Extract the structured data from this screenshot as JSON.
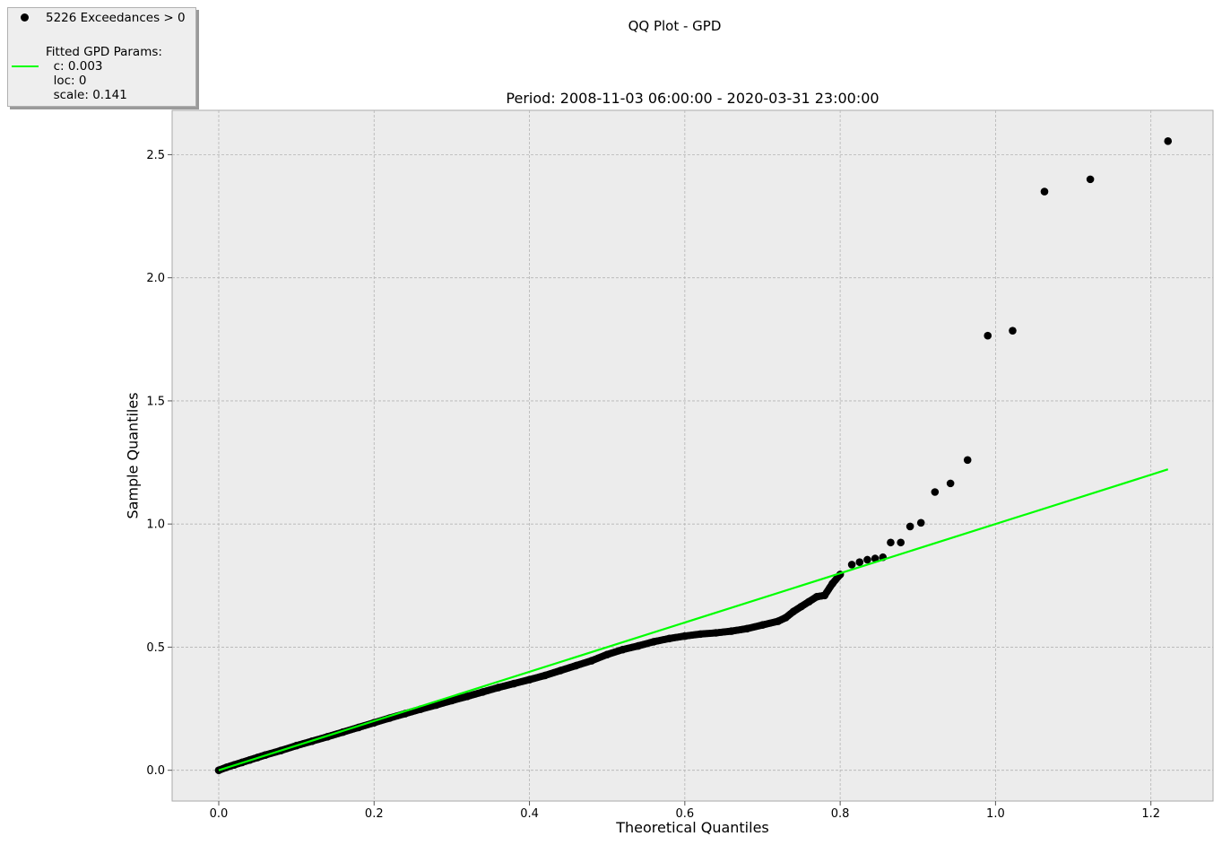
{
  "chart_data": {
    "type": "scatter",
    "title": "QQ Plot - GPD",
    "subtitle": "Period: 2008-11-03 06:00:00 - 2020-03-31 23:00:00",
    "xlabel": "Theoretical Quantiles",
    "ylabel": "Sample Quantiles",
    "xlim": [
      -0.06,
      1.28
    ],
    "ylim": [
      -0.125,
      2.68
    ],
    "xticks": [
      0.0,
      0.2,
      0.4,
      0.6,
      0.8,
      1.0,
      1.2
    ],
    "xtick_labels": [
      "0.0",
      "0.2",
      "0.4",
      "0.6",
      "0.8",
      "1.0",
      "1.2"
    ],
    "yticks": [
      0.0,
      0.5,
      1.0,
      1.5,
      2.0,
      2.5
    ],
    "ytick_labels": [
      "0.0",
      "0.5",
      "1.0",
      "1.5",
      "2.0",
      "2.5"
    ],
    "grid": true,
    "legend_position": "top-left",
    "colors": {
      "points": "#000000",
      "fit_line": "#00ff00",
      "plot_bg": "#ececec",
      "grid": "#b4b4b4"
    },
    "series": [
      {
        "name": "5226 Exceedances > 0",
        "kind": "scatter",
        "x": [
          0.0,
          0.01,
          0.02,
          0.03,
          0.04,
          0.05,
          0.06,
          0.08,
          0.1,
          0.12,
          0.14,
          0.16,
          0.18,
          0.2,
          0.22,
          0.24,
          0.26,
          0.28,
          0.3,
          0.32,
          0.34,
          0.36,
          0.38,
          0.4,
          0.42,
          0.44,
          0.46,
          0.48,
          0.5,
          0.52,
          0.54,
          0.56,
          0.58,
          0.6,
          0.62,
          0.64,
          0.66,
          0.68,
          0.7,
          0.72,
          0.73,
          0.74,
          0.75,
          0.76,
          0.77,
          0.78,
          0.79,
          0.8,
          0.815,
          0.825,
          0.835,
          0.845,
          0.855,
          0.865,
          0.878,
          0.89,
          0.904,
          0.922,
          0.942,
          0.964,
          0.99,
          1.022,
          1.063,
          1.122,
          1.222
        ],
        "y": [
          0.0,
          0.012,
          0.022,
          0.032,
          0.042,
          0.052,
          0.062,
          0.08,
          0.1,
          0.118,
          0.136,
          0.155,
          0.174,
          0.193,
          0.212,
          0.23,
          0.248,
          0.265,
          0.283,
          0.3,
          0.318,
          0.336,
          0.352,
          0.368,
          0.385,
          0.405,
          0.425,
          0.445,
          0.47,
          0.49,
          0.505,
          0.522,
          0.535,
          0.545,
          0.553,
          0.558,
          0.565,
          0.575,
          0.59,
          0.605,
          0.62,
          0.645,
          0.665,
          0.685,
          0.705,
          0.71,
          0.758,
          0.795,
          0.835,
          0.845,
          0.855,
          0.86,
          0.865,
          0.925,
          0.925,
          0.99,
          1.005,
          1.13,
          1.165,
          1.26,
          1.765,
          1.785,
          2.35,
          2.4,
          2.555
        ]
      },
      {
        "name": "Fitted GPD Params:\n  c: 0.003\n  loc: 0\n  scale: 0.141",
        "kind": "line",
        "x": [
          0.0,
          1.222
        ],
        "y": [
          0.0,
          1.222
        ]
      }
    ]
  },
  "legend": {
    "entries": [
      "5226 Exceedances > 0",
      "Fitted GPD Params:\n  c: 0.003\n  loc: 0\n  scale: 0.141"
    ]
  }
}
